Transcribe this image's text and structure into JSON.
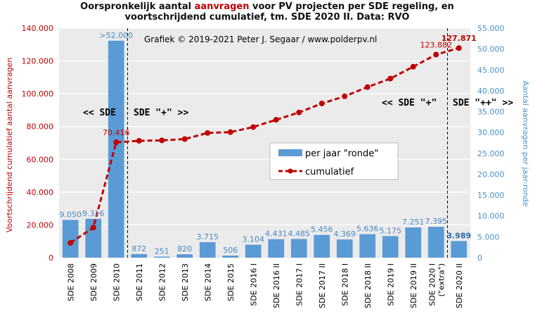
{
  "title": {
    "line1_part1": "Oorspronkelijk  aantal ",
    "line1_accent": "aanvragen",
    "line1_part2": " voor PV projecten per SDE regeling, en",
    "line2": "voortschrijdend cumulatief, tm. SDE 2020 II. Data: RVO"
  },
  "credit": "Grafiek  © 2019-2021 Peter J. Segaar / www.polderpv.nl",
  "region_labels": {
    "sde_left": "<< SDE",
    "sde_plus_right": "SDE \"+\" >>",
    "sde_plus_left": "<< SDE \"+\"",
    "sde_plusplus_right": "SDE \"++\" >>"
  },
  "legend": {
    "bars": "per jaar \"ronde\"",
    "line": "cumulatief"
  },
  "colors": {
    "bar": "#5b9bd5",
    "line": "#c00000",
    "grid": "#ffffff",
    "plot_bg": "#ebebeb"
  },
  "chart_data": {
    "type": "bar",
    "categories": [
      "SDE 2008",
      "SDE 2009",
      "SDE 2010",
      "SDE 2011",
      "SDE 2012",
      "SDE 2013",
      "SDE 2014",
      "SDE 2015",
      "SDE 2016 I",
      "SDE 2016 II",
      "SDE 2017 I",
      "SDE 2017 II",
      "SDE 2018 I",
      "SDE 2018 II",
      "SDE 2019 I",
      "SDE 2019 II",
      "SDE 2020 I (\"extra\")",
      "SDE 2020 II"
    ],
    "category_lines": [
      [
        "SDE 2008"
      ],
      [
        "SDE 2009"
      ],
      [
        "SDE 2010"
      ],
      [
        "SDE 2011"
      ],
      [
        "SDE 2012"
      ],
      [
        "SDE 2013"
      ],
      [
        "SDE 2014"
      ],
      [
        "SDE 2015"
      ],
      [
        "SDE 2016 I"
      ],
      [
        "SDE 2016 II"
      ],
      [
        "SDE 2017 I"
      ],
      [
        "SDE 2017 II"
      ],
      [
        "SDE 2018 I"
      ],
      [
        "SDE 2018 II"
      ],
      [
        "SDE 2019 I"
      ],
      [
        "SDE 2019 II"
      ],
      [
        "SDE 2020 I",
        "(\"extra\")"
      ],
      [
        "SDE 2020 II"
      ]
    ],
    "series": [
      {
        "name": "per jaar \"ronde\"",
        "axis": "right",
        "kind": "bar",
        "values": [
          9050,
          9316,
          52000,
          872,
          251,
          820,
          3715,
          506,
          3104,
          4431,
          4485,
          5456,
          4369,
          5636,
          5175,
          7251,
          7395,
          3989
        ],
        "labels": [
          "9.050",
          "9.316",
          ">52.000",
          "872",
          "251",
          "820",
          "3.715",
          "506",
          "3.104",
          "4.431",
          "4.485",
          "5.456",
          "4.369",
          "5.636",
          "5.175",
          "7.251",
          "7.395",
          "3.989"
        ]
      },
      {
        "name": "cumulatief",
        "axis": "left",
        "kind": "line",
        "values": [
          9050,
          18366,
          70416,
          71288,
          71539,
          72359,
          76074,
          76580,
          79684,
          84115,
          88600,
          94056,
          98425,
          104061,
          109236,
          116487,
          123882,
          127871
        ],
        "labels": {
          "2": "70.416",
          "16": "123.882",
          "17": "127.871"
        }
      }
    ],
    "ylabel_left": "Voortschrijdend cumulatief aantal aanvragen",
    "ylabel_right": "Aantal aanvragen per jaar-ronde",
    "ylim_left": [
      0,
      140000
    ],
    "ylim_right": [
      0,
      55000
    ],
    "yticks_left": [
      "0",
      "20.000",
      "40.000",
      "60.000",
      "80.000",
      "100.000",
      "120.000",
      "140.000"
    ],
    "yticks_right": [
      "0",
      "5.000",
      "10.000",
      "15.000",
      "20.000",
      "25.000",
      "30.000",
      "35.000",
      "40.000",
      "45.000",
      "50.000",
      "55.000"
    ],
    "region_dividers_after_index": [
      2,
      16
    ],
    "legend_position": "center-right",
    "grid": true
  }
}
